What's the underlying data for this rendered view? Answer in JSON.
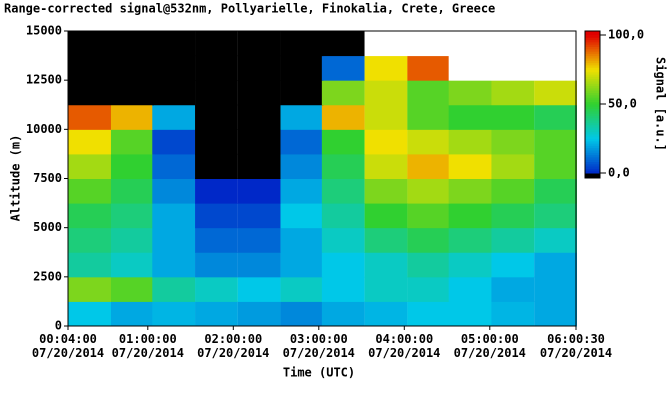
{
  "chart_data": {
    "type": "heatmap",
    "title": "Range-corrected signal@532nm, Pollyarielle, Finokalia, Crete, Greece",
    "xlabel": "Time (UTC)",
    "ylabel": "Altitude (m)",
    "colorbar_label": "Signal [a.u.]",
    "xlim": [
      4,
      360.5
    ],
    "xticks": [
      {
        "value": 4,
        "label": "00:04:00\n07/20/2014"
      },
      {
        "value": 60,
        "label": "01:00:00\n07/20/2014"
      },
      {
        "value": 120,
        "label": "02:00:00\n07/20/2014"
      },
      {
        "value": 180,
        "label": "03:00:00\n07/20/2014"
      },
      {
        "value": 240,
        "label": "04:00:00\n07/20/2014"
      },
      {
        "value": 300,
        "label": "05:00:00\n07/20/2014"
      },
      {
        "value": 360.5,
        "label": "06:00:30\n07/20/2014"
      }
    ],
    "ylim": [
      0,
      15000
    ],
    "yticks": [
      0,
      2500,
      5000,
      7500,
      10000,
      12500,
      15000
    ],
    "clim": [
      0,
      100
    ],
    "cticks": [
      {
        "value": 0,
        "label": "0,0"
      },
      {
        "value": 50,
        "label": "50,0"
      },
      {
        "value": 100,
        "label": "100,0"
      }
    ],
    "colorscale": [
      [
        0,
        "#0028c8"
      ],
      [
        25,
        "#00c8e8"
      ],
      [
        50,
        "#30d030"
      ],
      [
        75,
        "#f0e000"
      ],
      [
        100,
        "#e00000"
      ]
    ],
    "under_color": "#000000",
    "over_color": "#ffffff",
    "x": [
      19,
      49,
      78,
      108,
      138,
      168,
      197,
      227,
      257,
      286,
      316,
      346
    ],
    "y": [
      625,
      1875,
      3125,
      4375,
      5625,
      6875,
      8125,
      9375,
      10625,
      11875,
      13125,
      14375
    ],
    "z": [
      [
        25,
        20,
        22,
        20,
        18,
        15,
        20,
        22,
        25,
        25,
        22,
        20
      ],
      [
        60,
        55,
        35,
        30,
        25,
        30,
        25,
        30,
        30,
        25,
        20,
        20
      ],
      [
        35,
        30,
        20,
        15,
        15,
        20,
        25,
        30,
        35,
        30,
        25,
        20
      ],
      [
        40,
        35,
        20,
        10,
        10,
        20,
        30,
        40,
        45,
        40,
        35,
        30
      ],
      [
        45,
        40,
        20,
        5,
        5,
        25,
        35,
        50,
        55,
        50,
        45,
        40
      ],
      [
        55,
        45,
        15,
        0,
        0,
        20,
        40,
        60,
        65,
        60,
        55,
        45
      ],
      [
        65,
        50,
        10,
        -10,
        -10,
        15,
        45,
        70,
        80,
        75,
        65,
        55
      ],
      [
        75,
        55,
        5,
        -10,
        -10,
        10,
        50,
        75,
        70,
        65,
        60,
        55
      ],
      [
        90,
        80,
        20,
        -10,
        -10,
        20,
        80,
        70,
        55,
        50,
        50,
        45
      ],
      [
        -10,
        -10,
        -10,
        -10,
        -10,
        -10,
        60,
        70,
        55,
        60,
        65,
        70
      ],
      [
        -10,
        -10,
        -10,
        -10,
        -10,
        -10,
        10,
        75,
        90,
        110,
        110,
        110
      ],
      [
        -10,
        -10,
        -10,
        -10,
        -10,
        -10,
        -10,
        110,
        110,
        110,
        110,
        110
      ]
    ]
  }
}
